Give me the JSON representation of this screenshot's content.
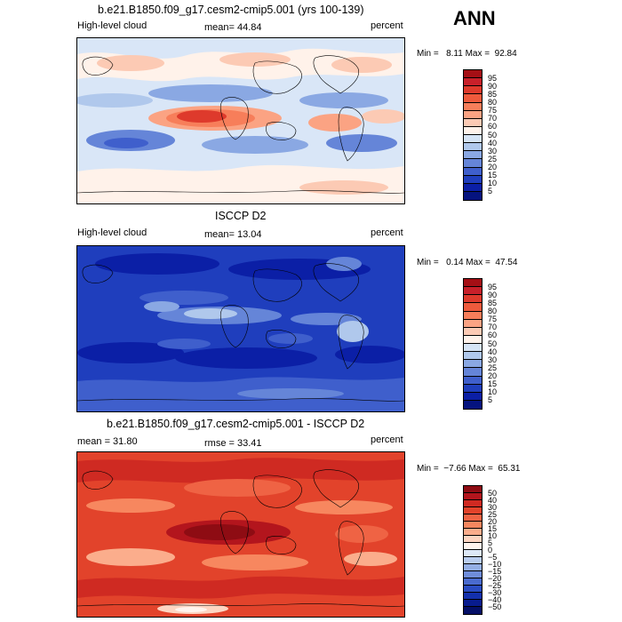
{
  "season": "ANN",
  "panels": [
    {
      "title": "b.e21.B1850.f09_g17.cesm2-cmip5.001 (yrs 100-139)",
      "left_label": "High-level cloud",
      "center_label": "mean=  44.84",
      "units": "percent",
      "minmax": "Min =   8.11 Max =  92.84",
      "levels": [
        "95",
        "90",
        "85",
        "80",
        "75",
        "70",
        "60",
        "50",
        "40",
        "30",
        "25",
        "20",
        "15",
        "10",
        "5"
      ],
      "colors": [
        "#a50f15",
        "#c8202a",
        "#de3a2c",
        "#ee5a3c",
        "#f77e5a",
        "#fba383",
        "#fccab4",
        "#fff2ea",
        "#d6e4f5",
        "#b0c8ec",
        "#8aa8e3",
        "#6585d8",
        "#3f5fcc",
        "#1f3ebd",
        "#0b1fa6",
        "#05137f"
      ],
      "map_bg": "#d9e6f7"
    },
    {
      "title": "ISCCP D2",
      "left_label": "High-level cloud",
      "center_label": "mean=  13.04",
      "units": "percent",
      "minmax": "Min =   0.14 Max =  47.54",
      "levels": [
        "95",
        "90",
        "85",
        "80",
        "75",
        "70",
        "60",
        "50",
        "40",
        "30",
        "25",
        "20",
        "15",
        "10",
        "5"
      ],
      "colors": [
        "#a50f15",
        "#c8202a",
        "#de3a2c",
        "#ee5a3c",
        "#f77e5a",
        "#fba383",
        "#fccab4",
        "#fff2ea",
        "#d6e4f5",
        "#b0c8ec",
        "#8aa8e3",
        "#6585d8",
        "#3f5fcc",
        "#1f3ebd",
        "#0b1fa6",
        "#05137f"
      ],
      "map_bg": "#1f3ebd"
    },
    {
      "title": "b.e21.B1850.f09_g17.cesm2-cmip5.001 - ISCCP D2",
      "left_label": "mean =  31.80",
      "center_label": "rmse =  33.41",
      "units": "percent",
      "minmax": "Min =  −7.66 Max =  65.31",
      "levels": [
        "50",
        "40",
        "30",
        "25",
        "20",
        "15",
        "10",
        "5",
        "0",
        "−5",
        "−10",
        "−15",
        "−20",
        "−25",
        "−30",
        "−40",
        "−50"
      ],
      "colors": [
        "#8e0c13",
        "#b3151d",
        "#cf2a22",
        "#e2432b",
        "#ef6344",
        "#f7875f",
        "#fbad8c",
        "#fdd5c2",
        "#fff4ee",
        "#dde8f7",
        "#b9cdef",
        "#94afe5",
        "#6f8ddb",
        "#4a6bcf",
        "#2a4cc2",
        "#1330ad",
        "#081c8e",
        "#040f66"
      ],
      "map_bg": "#e2432b"
    }
  ]
}
